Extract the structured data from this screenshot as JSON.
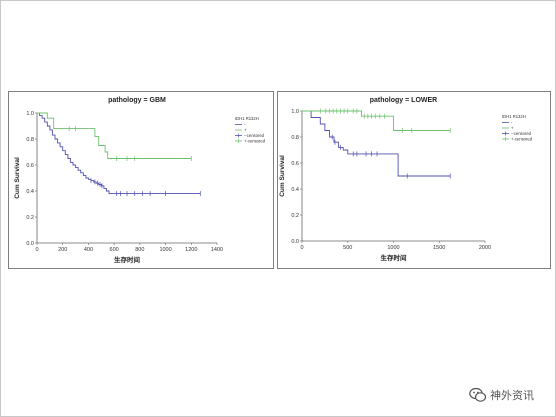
{
  "watermark": {
    "text": "神外资讯",
    "icon": "wechat-icon"
  },
  "colors": {
    "axis": "#666666",
    "series_wt": "#5050b0",
    "series_mut": "#6ec06e",
    "censor_wt": "#5050b0",
    "censor_mut": "#6ec06e"
  },
  "chart_data": [
    {
      "type": "line",
      "step": true,
      "title": "pathology = GBM",
      "xlabel": "生存时间",
      "ylabel": "Cum Survival",
      "xlim": [
        0,
        1400
      ],
      "ylim": [
        0,
        1.0
      ],
      "xticks": [
        "0",
        "200",
        "400",
        "600",
        "800",
        "1000",
        "1200",
        "1400"
      ],
      "yticks": [
        "0.0",
        "0.2",
        "0.4",
        "0.6",
        "0.8",
        "1.0"
      ],
      "legend": {
        "title": "IDH1 R132H",
        "position": "top-right",
        "entries": [
          "-",
          "+",
          "--censored",
          "+-censored"
        ]
      },
      "series": [
        {
          "name": "-",
          "color": "#5050b0",
          "x": [
            0,
            20,
            40,
            60,
            80,
            100,
            120,
            140,
            160,
            180,
            200,
            220,
            240,
            260,
            280,
            300,
            320,
            340,
            360,
            380,
            400,
            420,
            440,
            460,
            480,
            500,
            520,
            540,
            560,
            580,
            600,
            1270
          ],
          "y": [
            1.0,
            0.98,
            0.96,
            0.93,
            0.9,
            0.87,
            0.83,
            0.8,
            0.77,
            0.74,
            0.71,
            0.68,
            0.65,
            0.62,
            0.6,
            0.58,
            0.56,
            0.54,
            0.52,
            0.5,
            0.49,
            0.48,
            0.47,
            0.46,
            0.45,
            0.44,
            0.42,
            0.4,
            0.38,
            0.38,
            0.38,
            0.38
          ],
          "censored_x": [
            420,
            450,
            470,
            490,
            505,
            620,
            650,
            700,
            760,
            820,
            880,
            1000,
            1270
          ]
        },
        {
          "name": "+",
          "color": "#6ec06e",
          "x": [
            0,
            80,
            130,
            200,
            380,
            450,
            480,
            530,
            550,
            1200
          ],
          "y": [
            1.0,
            0.96,
            0.88,
            0.88,
            0.88,
            0.82,
            0.75,
            0.7,
            0.65,
            0.65
          ],
          "censored_x": [
            250,
            300,
            620,
            700,
            760,
            1200
          ]
        }
      ]
    },
    {
      "type": "line",
      "step": true,
      "title": "pathology = LOWER",
      "xlabel": "生存时间",
      "ylabel": "Cum Survival",
      "xlim": [
        0,
        2000
      ],
      "ylim": [
        0,
        1.0
      ],
      "xticks": [
        "0",
        "500",
        "1000",
        "1500",
        "2000"
      ],
      "yticks": [
        "0.0",
        "0.2",
        "0.4",
        "0.6",
        "0.8",
        "1.0"
      ],
      "legend": {
        "title": "IDH1 R132H",
        "position": "top-right",
        "entries": [
          "-",
          "+",
          "--censored",
          "+-censored"
        ]
      },
      "series": [
        {
          "name": "-",
          "color": "#5050b0",
          "x": [
            0,
            100,
            200,
            250,
            300,
            350,
            400,
            450,
            500,
            1050,
            1620
          ],
          "y": [
            1.0,
            0.95,
            0.9,
            0.85,
            0.8,
            0.76,
            0.72,
            0.7,
            0.67,
            0.5,
            0.5
          ],
          "censored_x": [
            330,
            360,
            420,
            560,
            600,
            700,
            760,
            820,
            1150,
            1620
          ]
        },
        {
          "name": "+",
          "color": "#6ec06e",
          "x": [
            0,
            650,
            1000,
            1620
          ],
          "y": [
            1.0,
            0.96,
            0.85,
            0.85
          ],
          "censored_x": [
            200,
            260,
            300,
            340,
            380,
            420,
            460,
            500,
            560,
            600,
            680,
            720,
            760,
            800,
            850,
            900,
            1100,
            1200,
            1620
          ]
        }
      ]
    }
  ]
}
